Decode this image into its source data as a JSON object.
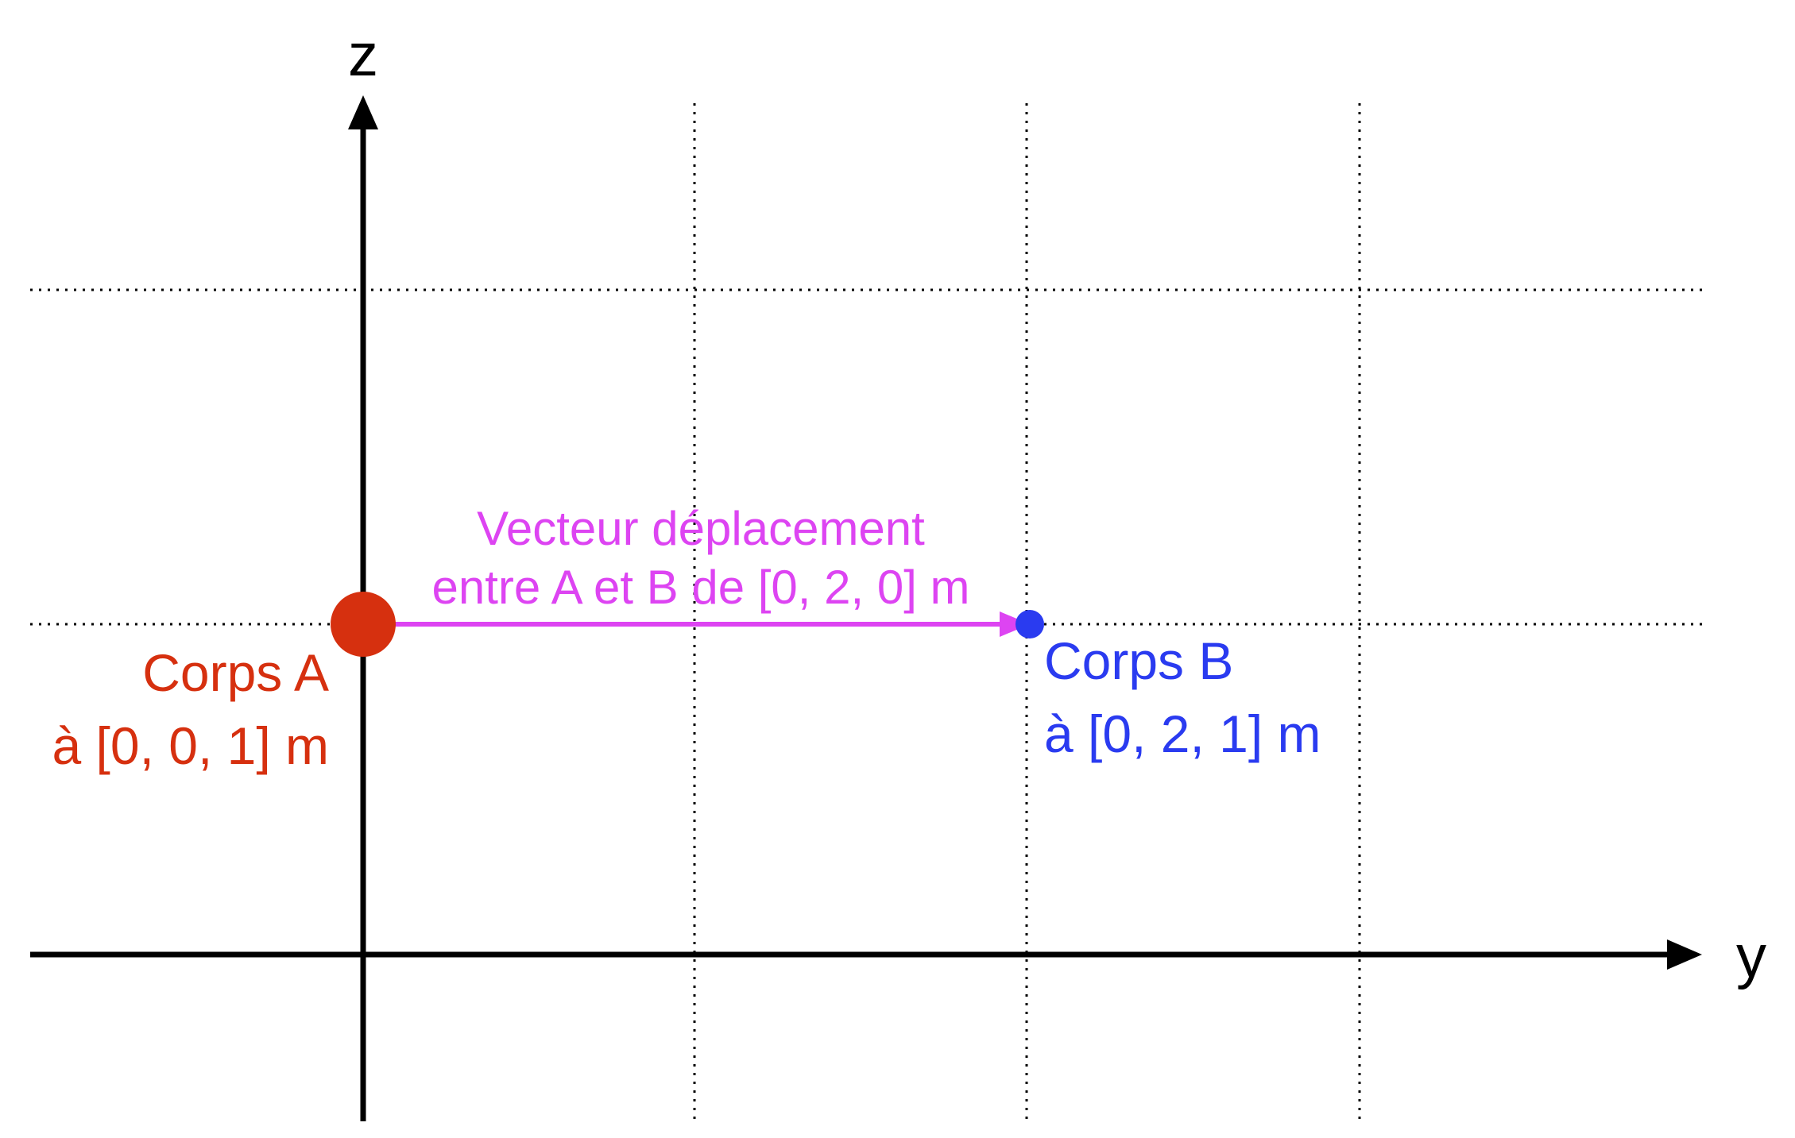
{
  "axes": {
    "vertical_label": "z",
    "horizontal_label": "y"
  },
  "body_a": {
    "label": "Corps A",
    "position_text": "à [0, 0, 1] m",
    "color": "#D6300F"
  },
  "body_b": {
    "label": "Corps B",
    "position_text": "à [0, 2, 1] m",
    "color": "#2A3BF0"
  },
  "vector": {
    "line1": "Vecteur déplacement",
    "line2": "entre A et B de [0, 2, 0] m",
    "color": "#DD44F2"
  },
  "colors": {
    "axis": "#000000",
    "grid": "#000000",
    "background": "#ffffff"
  }
}
